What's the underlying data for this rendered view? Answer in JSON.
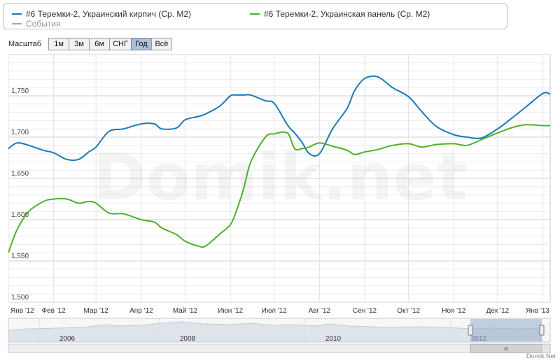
{
  "legend": {
    "series1": "#6 Теремки-2, Украинский кирпич (Ср. М2)",
    "series2": "#6 Теремки-2, Украинская панель (Ср. М2)",
    "events": "События",
    "series1_color": "#1a79b9",
    "series2_color": "#50b026",
    "events_color": "#aaaaaa"
  },
  "scale": {
    "label": "Масштаб",
    "buttons": [
      "1м",
      "3м",
      "6м",
      "СНГ",
      "Год",
      "Всё"
    ],
    "active": "Год"
  },
  "watermark": "Domik.net",
  "credit": "Domik.Net",
  "navigator": {
    "years": [
      "2006",
      "2008",
      "2010",
      "2012"
    ],
    "handle": "III"
  },
  "chart_data": {
    "type": "line",
    "ylim": [
      1500,
      1800
    ],
    "yticks": [
      "1,500",
      "1,550",
      "1,600",
      "1,650",
      "1,700",
      "1,750"
    ],
    "xtick_labels": [
      "Янв '12",
      "Фев '12",
      "Мар '12",
      "Апр '12",
      "Май '12",
      "Июн '12",
      "Июл '12",
      "Авг '12",
      "Сен '12",
      "Окт '12",
      "Ноя '12",
      "Дек '12",
      "Янв '13"
    ],
    "grid": true,
    "legend_position": "top",
    "x": [
      "2012-01-01",
      "2012-01-07",
      "2012-01-15",
      "2012-01-25",
      "2012-02-01",
      "2012-02-10",
      "2012-02-18",
      "2012-02-25",
      "2012-03-01",
      "2012-03-10",
      "2012-03-20",
      "2012-04-01",
      "2012-04-10",
      "2012-04-15",
      "2012-04-25",
      "2012-05-01",
      "2012-05-10",
      "2012-05-15",
      "2012-05-25",
      "2012-06-01",
      "2012-06-05",
      "2012-06-10",
      "2012-06-15",
      "2012-06-25",
      "2012-07-01",
      "2012-07-10",
      "2012-07-15",
      "2012-07-20",
      "2012-07-25",
      "2012-08-01",
      "2012-08-10",
      "2012-08-20",
      "2012-08-25",
      "2012-09-01",
      "2012-09-10",
      "2012-09-20",
      "2012-10-01",
      "2012-10-10",
      "2012-10-20",
      "2012-11-01",
      "2012-11-10",
      "2012-11-20",
      "2012-12-01",
      "2012-12-10",
      "2012-12-20",
      "2013-01-01",
      "2013-01-06"
    ],
    "series": [
      {
        "name": "#6 Теремки-2, Украинский кирпич (Ср. М2)",
        "values": [
          1686,
          1693,
          1690,
          1684,
          1681,
          1673,
          1673,
          1682,
          1688,
          1707,
          1710,
          1716,
          1716,
          1710,
          1711,
          1721,
          1725,
          1728,
          1738,
          1750,
          1751,
          1751,
          1751,
          1744,
          1741,
          1715,
          1705,
          1694,
          1680,
          1680,
          1710,
          1735,
          1756,
          1771,
          1773,
          1760,
          1749,
          1731,
          1713,
          1703,
          1700,
          1699,
          1710,
          1722,
          1736,
          1753,
          1752
        ],
        "color": "#1a79b9"
      },
      {
        "name": "#6 Теремки-2, Украинская панель (Ср. М2)",
        "values": [
          1560,
          1588,
          1610,
          1622,
          1625,
          1625,
          1620,
          1622,
          1620,
          1608,
          1607,
          1600,
          1597,
          1590,
          1582,
          1574,
          1568,
          1568,
          1583,
          1594,
          1610,
          1637,
          1670,
          1700,
          1704,
          1705,
          1686,
          1686,
          1688,
          1693,
          1689,
          1684,
          1679,
          1682,
          1685,
          1690,
          1692,
          1688,
          1691,
          1692,
          1690,
          1697,
          1705,
          1711,
          1715,
          1714,
          1714
        ],
        "color": "#50b026"
      }
    ]
  }
}
